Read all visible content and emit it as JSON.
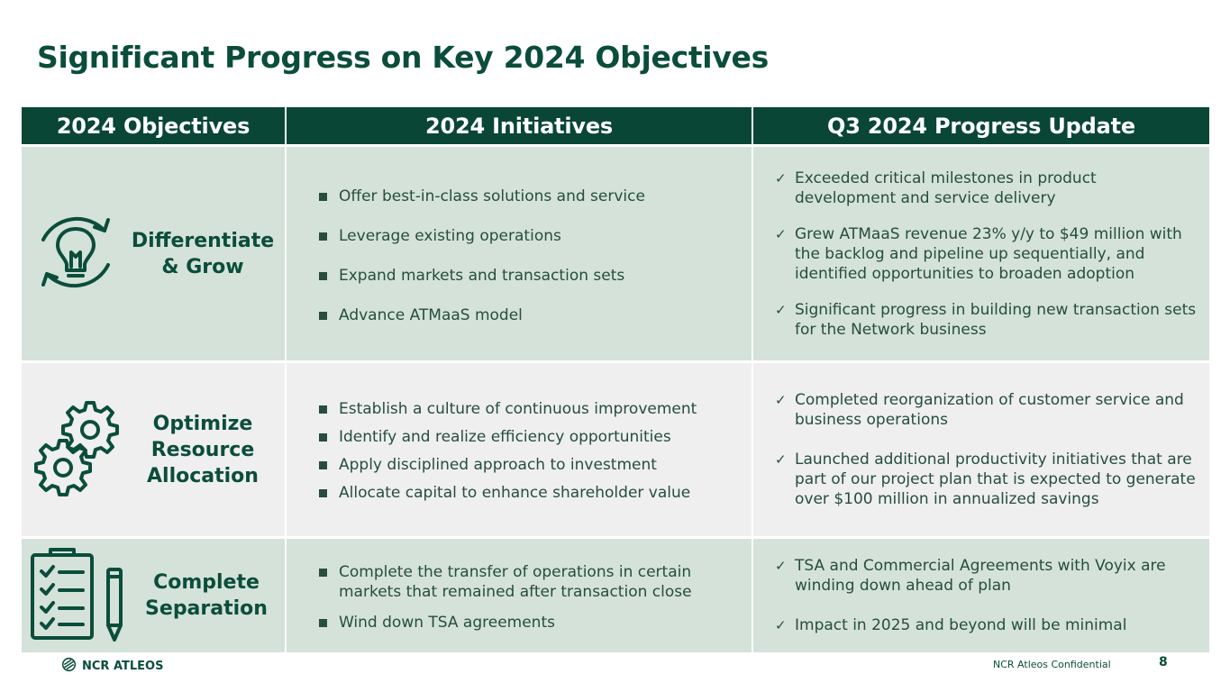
{
  "title": "Significant Progress on Key 2024 Objectives",
  "headers": {
    "objectives": "2024 Objectives",
    "initiatives": "2024 Initiatives",
    "progress": "Q3 2024 Progress Update"
  },
  "rows": [
    {
      "objective": "Differentiate\n& Grow",
      "icon": "lightbulb-cycle-icon",
      "initiatives": [
        "Offer best-in-class solutions and service",
        "Leverage existing operations",
        "Expand markets and transaction sets",
        "Advance ATMaaS model"
      ],
      "progress": [
        "Exceeded critical milestones in product development and service delivery",
        "Grew ATMaaS revenue 23% y/y to $49 million with the backlog and pipeline up sequentially, and identified opportunities to broaden adoption",
        "Significant progress in building new transaction sets for the Network business"
      ]
    },
    {
      "objective": "Optimize\nResource\nAllocation",
      "icon": "gears-icon",
      "initiatives": [
        "Establish a culture of continuous improvement",
        "Identify and realize efficiency opportunities",
        "Apply disciplined approach to investment",
        "Allocate capital to enhance shareholder value"
      ],
      "progress": [
        "Completed reorganization of customer service and business operations",
        "Launched additional productivity initiatives that are part of our project plan that is expected to generate over $100 million in annualized savings"
      ]
    },
    {
      "objective": "Complete\nSeparation",
      "icon": "clipboard-checklist-icon",
      "initiatives": [
        "Complete the transfer of operations in certain markets that remained after transaction close",
        "Wind down TSA agreements"
      ],
      "progress": [
        "TSA and Commercial Agreements with Voyix are winding down ahead of plan",
        "Impact in 2025 and beyond will be minimal"
      ]
    }
  ],
  "footer": {
    "logo_text": "NCR ATLEOS",
    "confidential": "NCR Atleos Confidential",
    "page_number": "8"
  },
  "colors": {
    "primary": "#094636",
    "row_green": "#d4e2da",
    "row_grey": "#eeefee"
  }
}
